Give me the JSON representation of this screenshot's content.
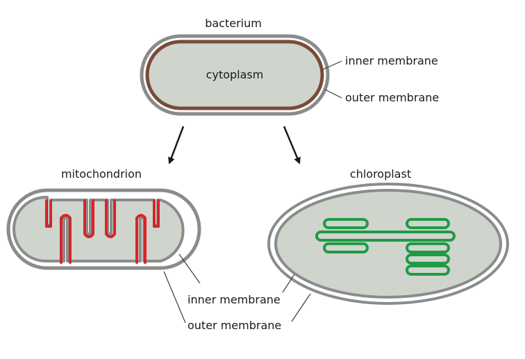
{
  "bacterium": {
    "title": "bacterium",
    "cytoplasm_label": "cytoplasm",
    "inner_membrane_label": "inner membrane",
    "outer_membrane_label": "outer membrane"
  },
  "mitochondrion": {
    "title": "mitochondrion"
  },
  "chloroplast": {
    "title": "chloroplast"
  },
  "shared_labels": {
    "inner_membrane_label": "inner membrane",
    "outer_membrane_label": "outer membrane"
  },
  "colors": {
    "membrane_gray": "#8a8c8c",
    "interior_fill": "#cfd4cc",
    "bacterial_inner_membrane": "#7a4a3a",
    "mitochondrial_cristae": "#d8232a",
    "thylakoid_green": "#1f9a45",
    "arrow": "#1a1a1a",
    "leader_line": "#3a3a3a"
  }
}
